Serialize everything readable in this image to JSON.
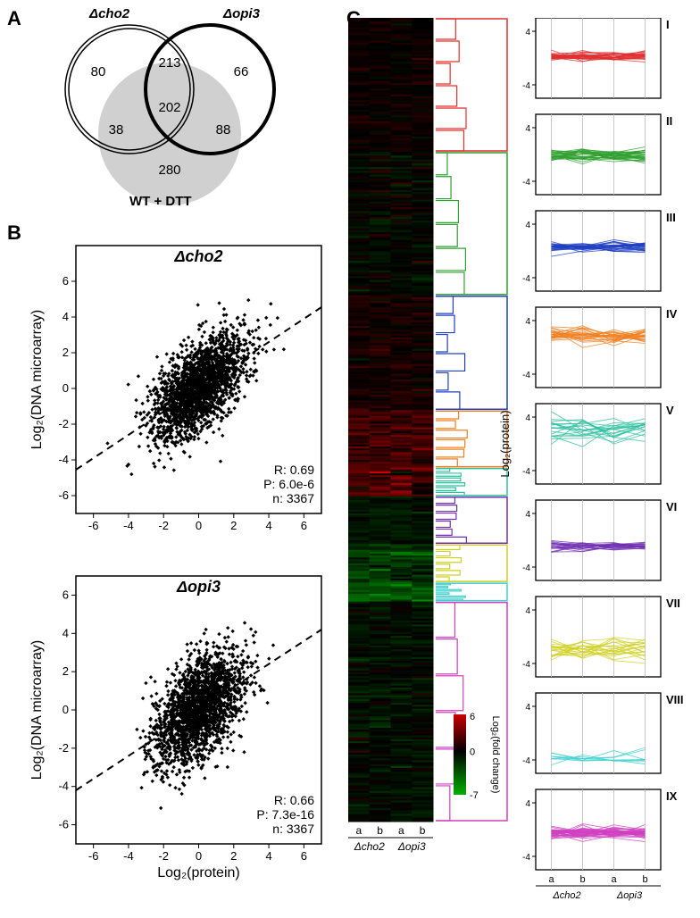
{
  "panelA": {
    "label": "A",
    "circle1_label": "Δcho2",
    "circle2_label": "Δopi3",
    "bottom_label": "WT + DTT",
    "values": {
      "only_cho2": "80",
      "cho2_opi3": "213",
      "only_opi3": "66",
      "cho2_dtt": "38",
      "center": "202",
      "opi3_dtt": "88",
      "only_dtt": "280"
    },
    "circle_stroke": "#000000",
    "bg_fill": "#d0d0d0"
  },
  "panelB": {
    "label": "B",
    "xlabel": "Log₂(protein)",
    "ylabel": "Log₂(DNA microarray)",
    "plots": [
      {
        "title": "Δcho2",
        "stats": {
          "R": "R: 0.69",
          "P": "P: 6.0e-6",
          "n": "n: 3367"
        },
        "xlim": [
          -7,
          7
        ],
        "ylim": [
          -7,
          8
        ],
        "xticks": [
          -6,
          -4,
          -2,
          0,
          2,
          4,
          6
        ],
        "yticks": [
          -6,
          -4,
          -2,
          0,
          2,
          4,
          6
        ],
        "slope": 0.65,
        "intercept": 0,
        "n_points": 2000,
        "spread": 1.2
      },
      {
        "title": "Δopi3",
        "stats": {
          "R": "R: 0.66",
          "P": "P: 7.3e-16",
          "n": "n: 3367"
        },
        "xlim": [
          -7,
          7
        ],
        "ylim": [
          -7,
          7
        ],
        "xticks": [
          -6,
          -4,
          -2,
          0,
          2,
          4,
          6
        ],
        "yticks": [
          -6,
          -4,
          -2,
          0,
          2,
          4,
          6
        ],
        "slope": 0.6,
        "intercept": 0,
        "n_points": 2000,
        "spread": 1.3
      }
    ],
    "point_color": "#000000",
    "axis_font": 14
  },
  "panelC": {
    "label": "C",
    "heatmap": {
      "cols": [
        "a",
        "b",
        "a",
        "b"
      ],
      "group_labels": [
        "Δcho2",
        "Δopi3"
      ],
      "colorbar": {
        "min": -7,
        "max": 6,
        "label": "Log₂(fold change)",
        "pos_color": "#cc0000",
        "zero_color": "#000000",
        "neg_color": "#00b000"
      }
    },
    "dendro_colors": [
      "#e03030",
      "#30a030",
      "#2040c0",
      "#f08020",
      "#30c0a0",
      "#7030b0",
      "#d0d020",
      "#40d0d0",
      "#d040c0"
    ],
    "cluster_ylabel": "Log₂(protein)",
    "clusters": [
      {
        "num": "I",
        "color": "#e03030",
        "mean": 0.3,
        "spread": 0.5,
        "n": 25
      },
      {
        "num": "II",
        "color": "#30a030",
        "mean": -0.2,
        "spread": 0.8,
        "n": 30
      },
      {
        "num": "III",
        "color": "#2040c0",
        "mean": 0.6,
        "spread": 0.6,
        "n": 25
      },
      {
        "num": "IV",
        "color": "#f08020",
        "mean": 1.8,
        "spread": 0.9,
        "n": 25
      },
      {
        "num": "V",
        "color": "#30c0a0",
        "mean": 2.2,
        "spread": 1.5,
        "n": 20
      },
      {
        "num": "VI",
        "color": "#7030b0",
        "mean": -0.8,
        "spread": 0.5,
        "n": 20
      },
      {
        "num": "VII",
        "color": "#d0d020",
        "mean": -2.0,
        "spread": 1.2,
        "n": 20
      },
      {
        "num": "VIII",
        "color": "#40d0d0",
        "mean": -3.5,
        "spread": 0.8,
        "n": 8
      },
      {
        "num": "IX",
        "color": "#d040c0",
        "mean": -0.5,
        "spread": 0.7,
        "n": 35
      }
    ],
    "cluster_ylim": [
      -6,
      6
    ],
    "cluster_yticks": [
      -4,
      4
    ],
    "cluster_xlabels": [
      "a",
      "b",
      "a",
      "b"
    ]
  }
}
